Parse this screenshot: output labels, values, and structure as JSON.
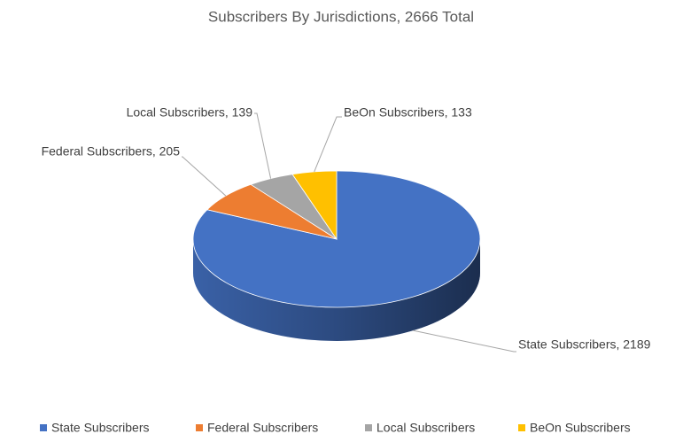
{
  "chart_data": {
    "type": "pie",
    "title": "Subscribers By Jurisdictions, 2666 Total",
    "categories": [
      "State Subscribers",
      "Federal Subscribers",
      "Local Subscribers",
      "BeOn Subscribers"
    ],
    "values": [
      2189,
      205,
      139,
      133
    ],
    "value_labels": [
      "State Subscribers, 2189",
      "Federal Subscribers, 205",
      "Local Subscribers, 139",
      "BeOn Subscribers, 133"
    ],
    "colors": [
      "#4472c4",
      "#ed7d31",
      "#a5a5a5",
      "#ffc000"
    ],
    "legend": "bottom"
  }
}
